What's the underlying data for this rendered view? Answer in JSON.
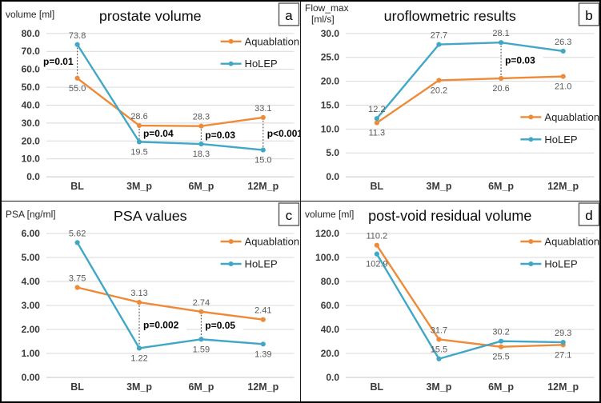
{
  "figure": {
    "background": "#ffffff",
    "border_color": "#000000"
  },
  "colors": {
    "aquablation": "#ED8B38",
    "holep": "#41A7C6",
    "grid": "#D9D9D9",
    "axis_line": "#C6C6C6",
    "value_label": "#595959",
    "p_line": "#4a4a4a",
    "letter_box_border": "#595959"
  },
  "legend_labels": [
    "Aquablation",
    "HoLEP"
  ],
  "chart_data": [
    {
      "type": "line",
      "panel_letter": "a",
      "title": "prostate volume",
      "ylabel_lines": [
        "volume  [ml]"
      ],
      "categories": [
        "BL",
        "3M_p",
        "6M_p",
        "12M_p"
      ],
      "ylim": [
        0,
        80
      ],
      "ytick_step": 10,
      "ytick_decimals": 1,
      "label_decimals": 1,
      "grid": true,
      "legend_position": "top-right",
      "series": [
        {
          "name": "Aquablation",
          "color_key": "aquablation",
          "values": [
            55.0,
            28.6,
            28.3,
            33.1
          ],
          "label_side": [
            "below",
            "above",
            "above",
            "above"
          ]
        },
        {
          "name": "HoLEP",
          "color_key": "holep",
          "values": [
            73.8,
            19.5,
            18.3,
            15.0
          ],
          "label_side": [
            "above",
            "below",
            "below",
            "below"
          ]
        }
      ],
      "p_annotations": [
        {
          "category": "BL",
          "label": "p=0.01",
          "side": "left"
        },
        {
          "category": "3M_p",
          "label": "p=0.04",
          "side": "right"
        },
        {
          "category": "6M_p",
          "label": "p=0.03",
          "side": "right"
        },
        {
          "category": "12M_p",
          "label": "p<0.001",
          "side": "right"
        }
      ]
    },
    {
      "type": "line",
      "panel_letter": "b",
      "title": "uroflowmetric results",
      "ylabel_lines": [
        "Flow_max",
        "[ml/s]"
      ],
      "categories": [
        "BL",
        "3M_p",
        "6M_p",
        "12M_p"
      ],
      "ylim": [
        0,
        30
      ],
      "ytick_step": 5,
      "ytick_decimals": 1,
      "label_decimals": 1,
      "grid": true,
      "legend_position": "middle-right",
      "series": [
        {
          "name": "Aquablation",
          "color_key": "aquablation",
          "values": [
            11.3,
            20.2,
            20.6,
            21.0
          ],
          "label_side": [
            "below",
            "below",
            "below",
            "below"
          ]
        },
        {
          "name": "HoLEP",
          "color_key": "holep",
          "values": [
            12.2,
            27.7,
            28.1,
            26.3
          ],
          "label_side": [
            "above",
            "above",
            "above",
            "above"
          ]
        }
      ],
      "p_annotations": [
        {
          "category": "6M_p",
          "label": "p=0.03",
          "side": "right"
        }
      ]
    },
    {
      "type": "line",
      "panel_letter": "c",
      "title": "PSA values",
      "ylabel_lines": [
        "PSA [ng/ml]"
      ],
      "categories": [
        "BL",
        "3M_p",
        "6M_p",
        "12M_p"
      ],
      "ylim": [
        0,
        6
      ],
      "ytick_step": 1,
      "ytick_decimals": 2,
      "label_decimals": 2,
      "grid": true,
      "legend_position": "top-right",
      "series": [
        {
          "name": "Aquablation",
          "color_key": "aquablation",
          "values": [
            3.75,
            3.13,
            2.74,
            2.41
          ],
          "label_side": [
            "above",
            "above",
            "above",
            "above"
          ]
        },
        {
          "name": "HoLEP",
          "color_key": "holep",
          "values": [
            5.62,
            1.22,
            1.59,
            1.39
          ],
          "label_side": [
            "above",
            "below",
            "below",
            "below"
          ]
        }
      ],
      "p_annotations": [
        {
          "category": "3M_p",
          "label": "p=0.002",
          "side": "right"
        },
        {
          "category": "6M_p",
          "label": "p=0.05",
          "side": "right"
        }
      ]
    },
    {
      "type": "line",
      "panel_letter": "d",
      "title": "post-void residual volume",
      "ylabel_lines": [
        "volume [ml]"
      ],
      "categories": [
        "BL",
        "3M_p",
        "6M_p",
        "12M_p"
      ],
      "ylim": [
        0,
        120
      ],
      "ytick_step": 20,
      "ytick_decimals": 1,
      "label_decimals": 1,
      "grid": true,
      "legend_position": "top-right",
      "series": [
        {
          "name": "Aquablation",
          "color_key": "aquablation",
          "values": [
            110.2,
            31.7,
            25.5,
            27.1
          ],
          "label_side": [
            "above",
            "above",
            "below",
            "below"
          ]
        },
        {
          "name": "HoLEP",
          "color_key": "holep",
          "values": [
            102.9,
            15.5,
            30.2,
            29.3
          ],
          "label_side": [
            "below",
            "above",
            "above",
            "above"
          ]
        }
      ],
      "p_annotations": []
    }
  ]
}
